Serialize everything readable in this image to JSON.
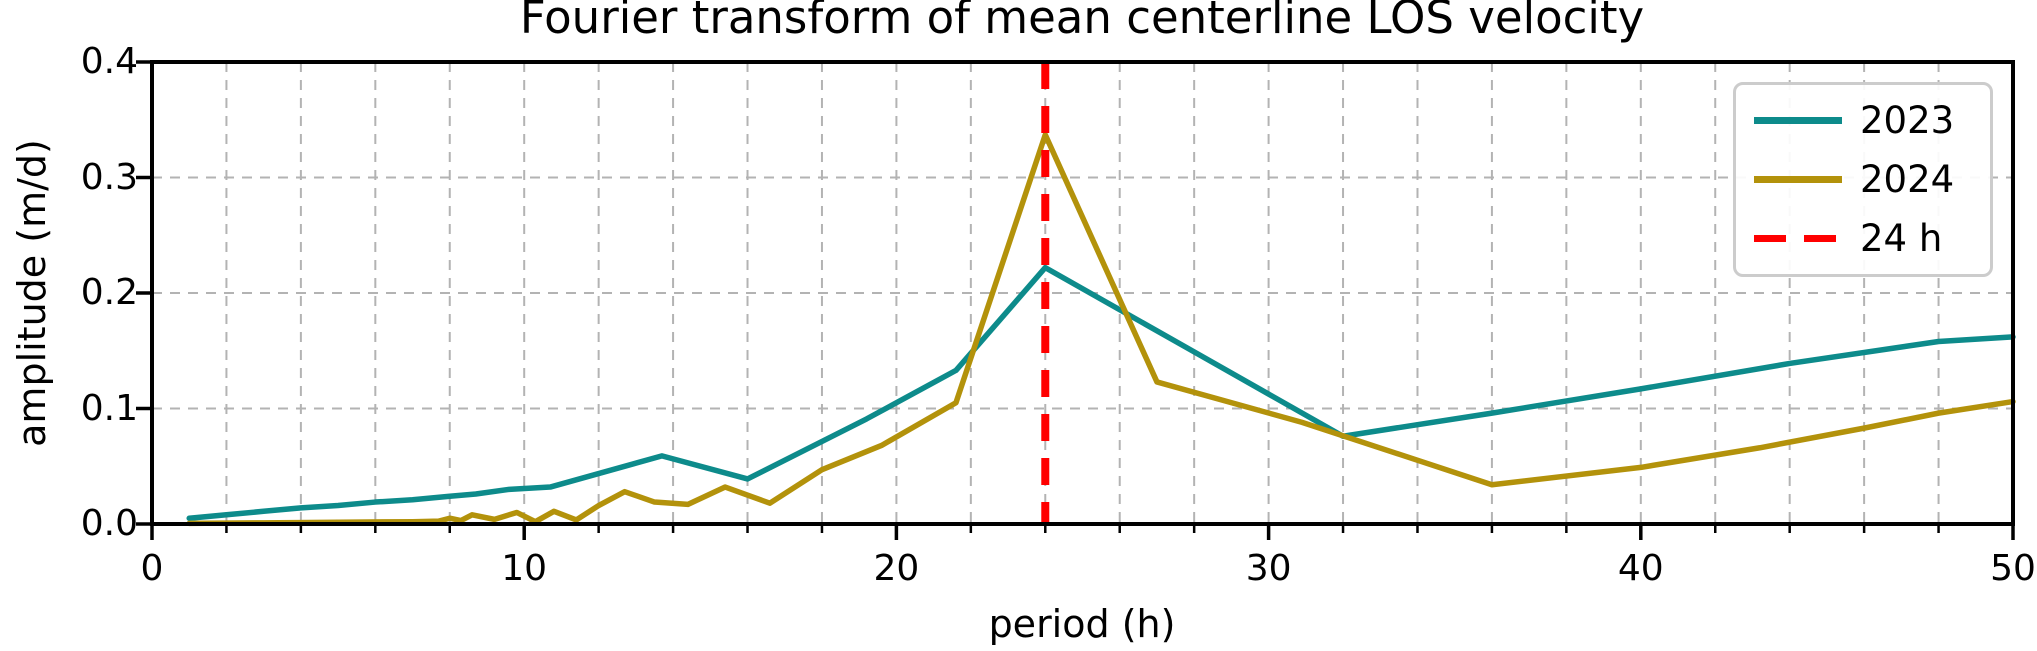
{
  "title": "Fourier transform of mean centerline LOS velocity",
  "chart_data": {
    "type": "line",
    "title": "Fourier transform of mean centerline LOS velocity",
    "xlabel": "period (h)",
    "ylabel": "amplitude (m/d)",
    "xlim": [
      0,
      50
    ],
    "ylim": [
      0,
      0.4
    ],
    "x_major_ticks": [
      0,
      10,
      20,
      30,
      40,
      50
    ],
    "x_tick_labels": [
      "0",
      "10",
      "20",
      "30",
      "40",
      "50"
    ],
    "x_minor_step": 2,
    "y_major_ticks": [
      0,
      0.1,
      0.2,
      0.3,
      0.4
    ],
    "y_tick_labels": [
      "0.0",
      "0.1",
      "0.2",
      "0.3",
      "0.4"
    ],
    "grid": {
      "x_step": 2,
      "y_step": 0.1,
      "color": "#b3b3b3",
      "style": "dashed"
    },
    "reference_line": {
      "x": 24,
      "label": "24 h",
      "color": "#ff0000",
      "style": "dashed"
    },
    "legend": {
      "position": "upper right",
      "entries": [
        {
          "label": "2023",
          "color": "#0d8b8b",
          "style": "solid"
        },
        {
          "label": "2024",
          "color": "#b3920b",
          "style": "solid"
        },
        {
          "label": "24 h",
          "color": "#ff0000",
          "style": "dashed"
        }
      ]
    },
    "series": [
      {
        "name": "2023",
        "color": "#0d8b8b",
        "points": [
          [
            1,
            0.005
          ],
          [
            2,
            0.008
          ],
          [
            3,
            0.011
          ],
          [
            4,
            0.014
          ],
          [
            5,
            0.016
          ],
          [
            6,
            0.019
          ],
          [
            7,
            0.021
          ],
          [
            8,
            0.024
          ],
          [
            8.7,
            0.026
          ],
          [
            9.6,
            0.03
          ],
          [
            10.7,
            0.032
          ],
          [
            13.7,
            0.059
          ],
          [
            16,
            0.039
          ],
          [
            19.2,
            0.091
          ],
          [
            21.6,
            0.133
          ],
          [
            24,
            0.222
          ],
          [
            28,
            0.149
          ],
          [
            32,
            0.076
          ],
          [
            36,
            0.096
          ],
          [
            40,
            0.117
          ],
          [
            44,
            0.139
          ],
          [
            48,
            0.158
          ],
          [
            50,
            0.162
          ]
        ]
      },
      {
        "name": "2024",
        "color": "#b3920b",
        "points": [
          [
            1,
            0.0005
          ],
          [
            3,
            0.001
          ],
          [
            5,
            0.0015
          ],
          [
            7,
            0.002
          ],
          [
            7.7,
            0.0025
          ],
          [
            8,
            0.005
          ],
          [
            8.3,
            0.003
          ],
          [
            8.6,
            0.008
          ],
          [
            9.2,
            0.004
          ],
          [
            9.8,
            0.01
          ],
          [
            10.3,
            0.002
          ],
          [
            10.8,
            0.011
          ],
          [
            11.4,
            0.0035
          ],
          [
            12,
            0.016
          ],
          [
            12.7,
            0.028
          ],
          [
            13.5,
            0.019
          ],
          [
            14.4,
            0.017
          ],
          [
            15.4,
            0.032
          ],
          [
            16.6,
            0.018
          ],
          [
            18,
            0.047
          ],
          [
            19.6,
            0.068
          ],
          [
            21.6,
            0.105
          ],
          [
            24,
            0.337
          ],
          [
            27,
            0.123
          ],
          [
            30.9,
            0.088
          ],
          [
            36,
            0.034
          ],
          [
            40,
            0.049
          ],
          [
            43.2,
            0.066
          ],
          [
            46,
            0.083
          ],
          [
            48,
            0.096
          ],
          [
            50,
            0.106
          ]
        ]
      }
    ]
  }
}
